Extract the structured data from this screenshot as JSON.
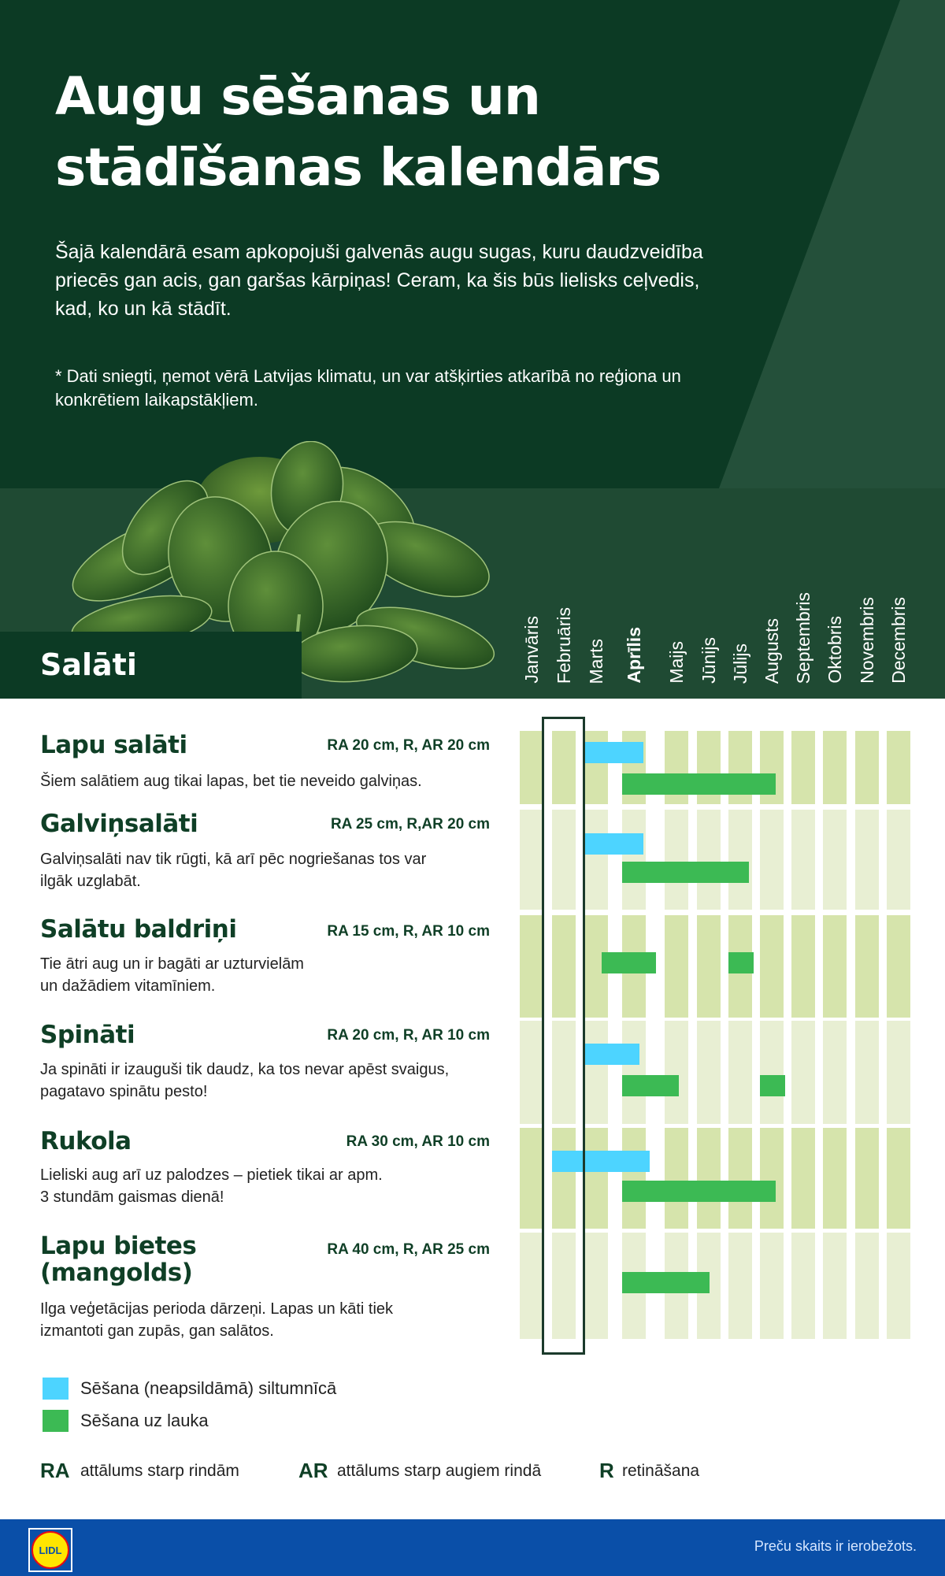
{
  "header": {
    "title_line1": "Augu sēšanas un",
    "title_line2": "stādīšanas kalendārs",
    "intro": "Šajā kalendārā esam apkopojuši galvenās augu sugas, kuru daudzveidība priecēs gan acis, gan garšas kārpiņas! Ceram, ka šis būs lielisks ceļvedis, kad, ko un kā stādīt.",
    "note": "* Dati sniegti, ņemot vērā Latvijas klimatu, un var atšķirties atkarībā no reģiona un konkrētiem laikapstākļiem."
  },
  "section": {
    "title": "Salāti"
  },
  "colors": {
    "header_dark": "#0c3a24",
    "header_mid": "#1f4a33",
    "greenhouse": "#4dd4ff",
    "field": "#3cba54",
    "band_dark": "#d6e4ac",
    "band_light": "#e8efd3",
    "footer": "#0a4fa8"
  },
  "items": [
    {
      "title": "Lapu salāti",
      "spacing": "RA 20 cm, R, AR 20 cm",
      "desc_lines": [
        "Šiem salātiem aug tikai lapas, bet tie neveido galviņas."
      ]
    },
    {
      "title": "Galviņsalāti",
      "spacing": "RA 25 cm, R,AR 20 cm",
      "desc_lines": [
        "Galviņsalāti nav tik rūgti, kā arī pēc nogriešanas tos var",
        "ilgāk uzglabāt."
      ]
    },
    {
      "title": "Salātu baldriņi",
      "spacing": "RA 15 cm, R, AR 10 cm",
      "desc_lines": [
        "Tie ātri aug un ir bagāti ar uzturvielām",
        "un dažādiem vitamīniem."
      ]
    },
    {
      "title": "Spināti",
      "spacing": "RA 20 cm, R, AR 10 cm",
      "desc_lines": [
        "Ja spināti ir izauguši tik daudz, ka tos nevar apēst svaigus,",
        "pagatavo spinātu pesto!"
      ]
    },
    {
      "title": "Rukola",
      "spacing": "RA 30 cm, AR 10 cm",
      "desc_lines": [
        "Lieliski aug arī uz palodzes – pietiek tikai ar apm.",
        "3 stundām gaismas dienā!"
      ]
    },
    {
      "title_lines": [
        "Lapu bietes",
        "(mangolds)"
      ],
      "spacing": "RA 40 cm, R, AR 25 cm",
      "desc_lines": [
        "Ilga veģetācijas perioda dārzeņi. Lapas un kāti tiek",
        "izmantoti gan zupās, gan salātos."
      ]
    }
  ],
  "chart_data": {
    "type": "bar",
    "orientation": "horizontal-range",
    "categories": [
      "Janvāris",
      "Februāris",
      "Marts",
      "Aprīlis",
      "Maijs",
      "Jūnijs",
      "Jūlijs",
      "Augusts",
      "Septembris",
      "Oktobris",
      "Novembris",
      "Decembris"
    ],
    "highlighted_category": "Aprīlis",
    "boxed_category": "Februāris",
    "rows": [
      {
        "plant": "Lapu salāti",
        "greenhouse": [
          [
            3.0,
            4.5
          ]
        ],
        "field": [
          [
            4.0,
            8.5
          ]
        ]
      },
      {
        "plant": "Galviņsalāti",
        "greenhouse": [
          [
            3.0,
            4.5
          ]
        ],
        "field": [
          [
            4.0,
            7.65
          ]
        ]
      },
      {
        "plant": "Salātu baldriņi",
        "greenhouse": [],
        "field": [
          [
            3.45,
            4.8
          ],
          [
            7.0,
            7.8
          ]
        ]
      },
      {
        "plant": "Spināti",
        "greenhouse": [
          [
            2.95,
            4.4
          ]
        ],
        "field": [
          [
            4.0,
            5.45
          ],
          [
            8.0,
            8.8
          ]
        ]
      },
      {
        "plant": "Rukola",
        "greenhouse": [
          [
            2.0,
            4.65
          ]
        ],
        "field": [
          [
            4.0,
            8.5
          ]
        ]
      },
      {
        "plant": "Lapu bietes (mangolds)",
        "greenhouse": [],
        "field": [
          [
            4.0,
            6.4
          ]
        ]
      }
    ],
    "legend": [
      {
        "key": "greenhouse",
        "label": "Sēšana (neapsildāmā) siltumnīcā",
        "color": "#4dd4ff"
      },
      {
        "key": "field",
        "label": "Sēšana uz lauka",
        "color": "#3cba54"
      }
    ]
  },
  "abbreviations": [
    {
      "abbr": "RA",
      "text": "attālums starp rindām"
    },
    {
      "abbr": "AR",
      "text": "attālums starp augiem rindā"
    },
    {
      "abbr": "R",
      "text": "retināšana"
    }
  ],
  "footer": {
    "text": "Preču skaits ir ierobežots.",
    "logo": "LIDL"
  }
}
